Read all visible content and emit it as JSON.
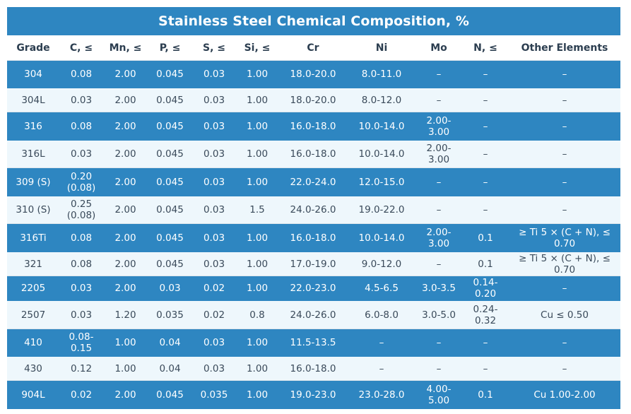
{
  "title": "Stainless Steel Chemical Composition, %",
  "headers": [
    "Grade",
    "C, ≤",
    "Mn, ≤",
    "P, ≤",
    "S, ≤",
    "Si, ≤",
    "Cr",
    "Ni",
    "Mo",
    "N, ≤",
    "Other Elements"
  ],
  "rows": [
    {
      "style": "blue",
      "cells": [
        "304",
        "0.08",
        "2.00",
        "0.045",
        "0.03",
        "1.00",
        "18.0-20.0",
        "8.0-11.0",
        "–",
        "–",
        "–"
      ]
    },
    {
      "style": "light",
      "cells": [
        "304L",
        "0.03",
        "2.00",
        "0.045",
        "0.03",
        "1.00",
        "18.0-20.0",
        "8.0-12.0",
        "–",
        "–",
        "–"
      ]
    },
    {
      "style": "blue",
      "cells": [
        "316",
        "0.08",
        "2.00",
        "0.045",
        "0.03",
        "1.00",
        "16.0-18.0",
        "10.0-14.0",
        "2.00-\n3.00",
        "–",
        "–"
      ]
    },
    {
      "style": "light",
      "cells": [
        "316L",
        "0.03",
        "2.00",
        "0.045",
        "0.03",
        "1.00",
        "16.0-18.0",
        "10.0-14.0",
        "2.00-\n3.00",
        "–",
        "–"
      ]
    },
    {
      "style": "blue",
      "cells": [
        "309 (S)",
        "0.20\n(0.08)",
        "2.00",
        "0.045",
        "0.03",
        "1.00",
        "22.0-24.0",
        "12.0-15.0",
        "–",
        "–",
        "–"
      ]
    },
    {
      "style": "light",
      "cells": [
        "310 (S)",
        "0.25\n(0.08)",
        "2.00",
        "0.045",
        "0.03",
        "1.5",
        "24.0-26.0",
        "19.0-22.0",
        "–",
        "–",
        "–"
      ]
    },
    {
      "style": "blue",
      "cells": [
        "316Ti",
        "0.08",
        "2.00",
        "0.045",
        "0.03",
        "1.00",
        "16.0-18.0",
        "10.0-14.0",
        "2.00-\n3.00",
        "0.1",
        "≥ Ti 5 × (C + N), ≤ 0.70"
      ]
    },
    {
      "style": "light",
      "cells": [
        "321",
        "0.08",
        "2.00",
        "0.045",
        "0.03",
        "1.00",
        "17.0-19.0",
        "9.0-12.0",
        "–",
        "0.1",
        "≥ Ti 5 × (C + N), ≤ 0.70"
      ]
    },
    {
      "style": "blue",
      "cells": [
        "2205",
        "0.03",
        "2.00",
        "0.03",
        "0.02",
        "1.00",
        "22.0-23.0",
        "4.5-6.5",
        "3.0-3.5",
        "0.14-0.20",
        "–"
      ]
    },
    {
      "style": "light",
      "cells": [
        "2507",
        "0.03",
        "1.20",
        "0.035",
        "0.02",
        "0.8",
        "24.0-26.0",
        "6.0-8.0",
        "3.0-5.0",
        "0.24-0.32",
        "Cu ≤ 0.50"
      ]
    },
    {
      "style": "blue",
      "cells": [
        "410",
        "0.08-\n0.15",
        "1.00",
        "0.04",
        "0.03",
        "1.00",
        "11.5-13.5",
        "–",
        "–",
        "–",
        "–"
      ]
    },
    {
      "style": "light",
      "cells": [
        "430",
        "0.12",
        "1.00",
        "0.04",
        "0.03",
        "1.00",
        "16.0-18.0",
        "–",
        "–",
        "–",
        "–"
      ]
    },
    {
      "style": "blue",
      "cells": [
        "904L",
        "0.02",
        "2.00",
        "0.045",
        "0.035",
        "1.00",
        "19.0-23.0",
        "23.0-28.0",
        "4.00-\n5.00",
        "0.1",
        "Cu 1.00-2.00"
      ]
    }
  ],
  "colors": {
    "accent": "#2e86c1",
    "light_row": "#eef7fc",
    "text": "#3a4a5a"
  }
}
